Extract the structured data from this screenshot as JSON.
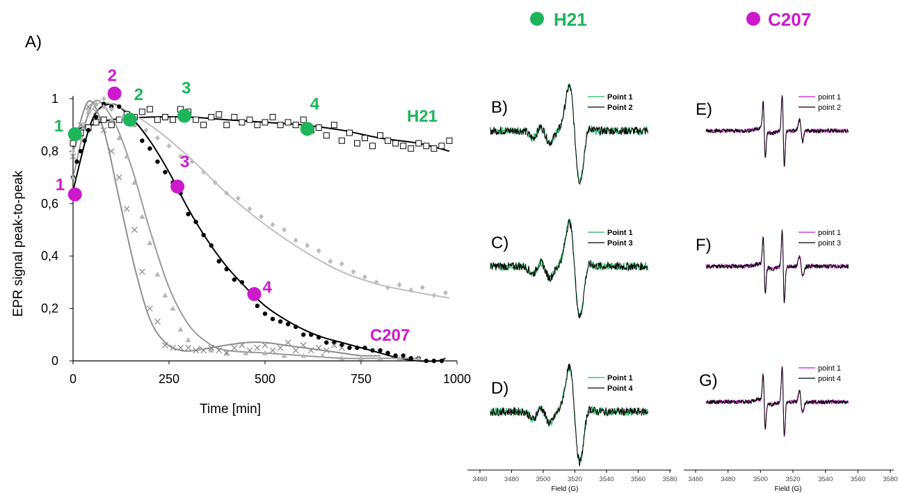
{
  "figure": {
    "panel_A_label": "A)",
    "h21_header": "H21",
    "c207_header": "C207",
    "colors": {
      "green": "#1db45a",
      "magenta": "#cc19cc",
      "black": "#000000",
      "gray": "#8c8c8c",
      "lightgray": "#bdbdbd"
    }
  },
  "chart_data": [
    {
      "type": "scatter",
      "panel": "A)",
      "xlabel": "Time [min]",
      "ylabel": "EPR signal peak-to-peak",
      "xlim": [
        0,
        1000
      ],
      "ylim": [
        0,
        1
      ],
      "xticks": [
        "0",
        "250",
        "500",
        "750",
        "1000"
      ],
      "yticks": [
        "0",
        "0,2",
        "0,4",
        "0,6",
        "0,8",
        "1"
      ],
      "grid": false,
      "annotations": [
        "H21",
        "C207"
      ],
      "series": [
        {
          "name": "H21",
          "marker": "open-square",
          "color": "#000000",
          "x": [
            0,
            20,
            40,
            60,
            80,
            100,
            120,
            140,
            160,
            180,
            200,
            220,
            240,
            260,
            280,
            300,
            320,
            340,
            360,
            380,
            400,
            420,
            440,
            460,
            480,
            500,
            520,
            540,
            560,
            580,
            600,
            620,
            640,
            660,
            680,
            700,
            720,
            740,
            760,
            780,
            800,
            820,
            840,
            860,
            880,
            900,
            920,
            940,
            960,
            980
          ],
          "y": [
            0.83,
            0.87,
            0.89,
            0.91,
            0.92,
            0.9,
            0.92,
            0.94,
            0.93,
            0.95,
            0.96,
            0.92,
            0.93,
            0.92,
            0.96,
            0.95,
            0.92,
            0.9,
            0.93,
            0.94,
            0.9,
            0.93,
            0.91,
            0.92,
            0.9,
            0.91,
            0.93,
            0.9,
            0.91,
            0.9,
            0.92,
            0.88,
            0.89,
            0.86,
            0.9,
            0.84,
            0.87,
            0.83,
            0.85,
            0.82,
            0.86,
            0.84,
            0.83,
            0.82,
            0.81,
            0.83,
            0.82,
            0.81,
            0.82,
            0.84
          ],
          "fit_x": [
            0,
            50,
            100,
            200,
            300,
            400,
            500,
            600,
            700,
            800,
            900,
            980
          ],
          "fit_y": [
            0.88,
            0.9,
            0.92,
            0.93,
            0.93,
            0.92,
            0.91,
            0.9,
            0.88,
            0.85,
            0.83,
            0.8
          ]
        },
        {
          "name": "C207",
          "marker": "filled-circle",
          "color": "#000000",
          "x": [
            0,
            10,
            20,
            30,
            40,
            60,
            80,
            100,
            120,
            140,
            160,
            180,
            200,
            220,
            240,
            260,
            280,
            300,
            320,
            340,
            360,
            380,
            400,
            420,
            440,
            460,
            480,
            500,
            520,
            540,
            560,
            580,
            600,
            620,
            640,
            660,
            680,
            700,
            720,
            740,
            760,
            780,
            800,
            820,
            840,
            860,
            880,
            900,
            920,
            940,
            960
          ],
          "y": [
            0.7,
            0.76,
            0.8,
            0.84,
            0.88,
            0.93,
            0.98,
            0.97,
            0.97,
            0.93,
            0.9,
            0.84,
            0.81,
            0.76,
            0.72,
            0.68,
            0.64,
            0.56,
            0.53,
            0.48,
            0.44,
            0.38,
            0.35,
            0.31,
            0.3,
            0.26,
            0.21,
            0.18,
            0.16,
            0.15,
            0.14,
            0.13,
            0.1,
            0.1,
            0.09,
            0.07,
            0.07,
            0.06,
            0.05,
            0.05,
            0.05,
            0.04,
            0.04,
            0.03,
            0.02,
            0.02,
            0.01,
            0.01,
            0.0,
            0.0,
            0.0
          ],
          "fit_x": [
            0,
            50,
            100,
            150,
            200,
            250,
            300,
            350,
            400,
            450,
            500,
            550,
            600,
            650,
            700,
            750,
            800,
            850,
            900,
            950,
            970
          ],
          "fit_y": [
            0.65,
            0.92,
            0.98,
            0.93,
            0.84,
            0.72,
            0.58,
            0.46,
            0.36,
            0.28,
            0.21,
            0.16,
            0.12,
            0.09,
            0.07,
            0.05,
            0.03,
            0.01,
            0.0,
            0.0,
            0.01
          ]
        },
        {
          "marker": "diamond",
          "color": "#bdbdbd",
          "x": [
            0,
            20,
            40,
            60,
            80,
            100,
            130,
            160,
            190,
            220,
            250,
            280,
            310,
            340,
            370,
            400,
            430,
            460,
            490,
            520,
            550,
            580,
            610,
            640,
            670,
            700,
            730,
            760,
            790,
            820,
            850,
            880,
            910,
            940,
            970
          ],
          "y": [
            0.8,
            0.9,
            0.96,
            0.98,
            1.0,
            0.96,
            0.93,
            0.9,
            0.88,
            0.85,
            0.82,
            0.78,
            0.76,
            0.72,
            0.68,
            0.64,
            0.62,
            0.58,
            0.55,
            0.52,
            0.5,
            0.46,
            0.44,
            0.42,
            0.38,
            0.37,
            0.34,
            0.32,
            0.3,
            0.28,
            0.29,
            0.27,
            0.28,
            0.25,
            0.26
          ],
          "fit_x": [
            0,
            50,
            100,
            200,
            300,
            400,
            500,
            600,
            700,
            800,
            900,
            980
          ],
          "fit_y": [
            0.8,
            0.96,
            0.98,
            0.9,
            0.78,
            0.64,
            0.52,
            0.42,
            0.34,
            0.29,
            0.26,
            0.24
          ]
        },
        {
          "marker": "triangle",
          "color": "#b4b4b4",
          "x": [
            0,
            20,
            40,
            60,
            80,
            100,
            120,
            140,
            160,
            180,
            200,
            220,
            240,
            260,
            280,
            300,
            330,
            360,
            400,
            450,
            500,
            550,
            600,
            650,
            700,
            750,
            800,
            850,
            900
          ],
          "y": [
            0.7,
            0.85,
            0.95,
            0.98,
            0.97,
            0.92,
            0.85,
            0.78,
            0.68,
            0.55,
            0.45,
            0.33,
            0.25,
            0.2,
            0.12,
            0.08,
            0.05,
            0.04,
            0.03,
            0.03,
            0.03,
            0.02,
            0.02,
            0.02,
            0.01,
            0.01,
            0.01,
            0.01,
            0.01
          ],
          "fit_x": [
            0,
            50,
            100,
            150,
            200,
            250,
            300,
            350,
            400,
            500,
            600,
            700,
            800,
            900
          ],
          "fit_y": [
            0.7,
            0.98,
            0.93,
            0.75,
            0.5,
            0.28,
            0.14,
            0.07,
            0.04,
            0.03,
            0.02,
            0.01,
            0.01,
            0.01
          ]
        },
        {
          "marker": "cross",
          "color": "#8c8c8c",
          "x": [
            0,
            20,
            40,
            60,
            80,
            100,
            120,
            140,
            160,
            180,
            200,
            220,
            240,
            260,
            280,
            300,
            320,
            340,
            360,
            380,
            400,
            420,
            440,
            460,
            480,
            500,
            520,
            540,
            560,
            580,
            600,
            620,
            640,
            660,
            680,
            700
          ],
          "y": [
            0.78,
            0.9,
            0.97,
            0.95,
            0.88,
            0.8,
            0.7,
            0.58,
            0.5,
            0.34,
            0.2,
            0.15,
            0.06,
            0.05,
            0.05,
            0.05,
            0.04,
            0.04,
            0.05,
            0.04,
            0.03,
            0.05,
            0.06,
            0.04,
            0.05,
            0.06,
            0.04,
            0.05,
            0.07,
            0.04,
            0.06,
            0.04,
            0.05,
            0.04,
            0.06,
            0.05
          ],
          "fit_x": [
            0,
            40,
            80,
            120,
            160,
            200,
            240,
            280,
            320,
            360,
            400,
            450,
            500,
            550,
            600,
            650,
            700,
            750,
            800
          ],
          "fit_y": [
            0.8,
            0.99,
            0.88,
            0.62,
            0.36,
            0.16,
            0.07,
            0.04,
            0.04,
            0.05,
            0.06,
            0.07,
            0.07,
            0.06,
            0.05,
            0.04,
            0.03,
            0.02,
            0.02
          ]
        }
      ],
      "markers": {
        "H21": [
          {
            "label": "1",
            "x": 5,
            "y": 0.865
          },
          {
            "label": "2",
            "x": 148,
            "y": 0.92
          },
          {
            "label": "3",
            "x": 290,
            "y": 0.935
          },
          {
            "label": "4",
            "x": 610,
            "y": 0.885
          }
        ],
        "C207": [
          {
            "label": "1",
            "x": 5,
            "y": 0.635
          },
          {
            "label": "2",
            "x": 108,
            "y": 1.02
          },
          {
            "label": "3",
            "x": 272,
            "y": 0.665
          },
          {
            "label": "4",
            "x": 472,
            "y": 0.255
          }
        ]
      }
    },
    {
      "type": "line",
      "xlabel": "Field (G)",
      "xlim": [
        3450,
        3580
      ],
      "xticks": [
        "3460",
        "3480",
        "3500",
        "3520",
        "3540",
        "3560",
        "3580"
      ],
      "panels": [
        {
          "label": "B)",
          "legend": [
            "Point 1",
            "Point 2"
          ],
          "colors": [
            "#1db45a",
            "#000000"
          ]
        },
        {
          "label": "C)",
          "legend": [
            "Point 1",
            "Point 3"
          ],
          "colors": [
            "#1db45a",
            "#000000"
          ]
        },
        {
          "label": "D)",
          "legend": [
            "Point 1",
            "Point 4"
          ],
          "colors": [
            "#1db45a",
            "#000000"
          ]
        }
      ]
    },
    {
      "type": "line",
      "xlabel": "Field (G)",
      "xlim": [
        3450,
        3580
      ],
      "xticks": [
        "3460",
        "3480",
        "3500",
        "3520",
        "3540",
        "3560",
        "3580"
      ],
      "panels": [
        {
          "label": "E)",
          "legend": [
            "point 1",
            "point 2"
          ],
          "colors": [
            "#cc19cc",
            "#000000"
          ]
        },
        {
          "label": "F)",
          "legend": [
            "point 1",
            "point 3"
          ],
          "colors": [
            "#cc19cc",
            "#000000"
          ]
        },
        {
          "label": "G)",
          "legend": [
            "point 1",
            "point 4"
          ],
          "colors": [
            "#cc19cc",
            "#000000"
          ]
        }
      ]
    }
  ]
}
